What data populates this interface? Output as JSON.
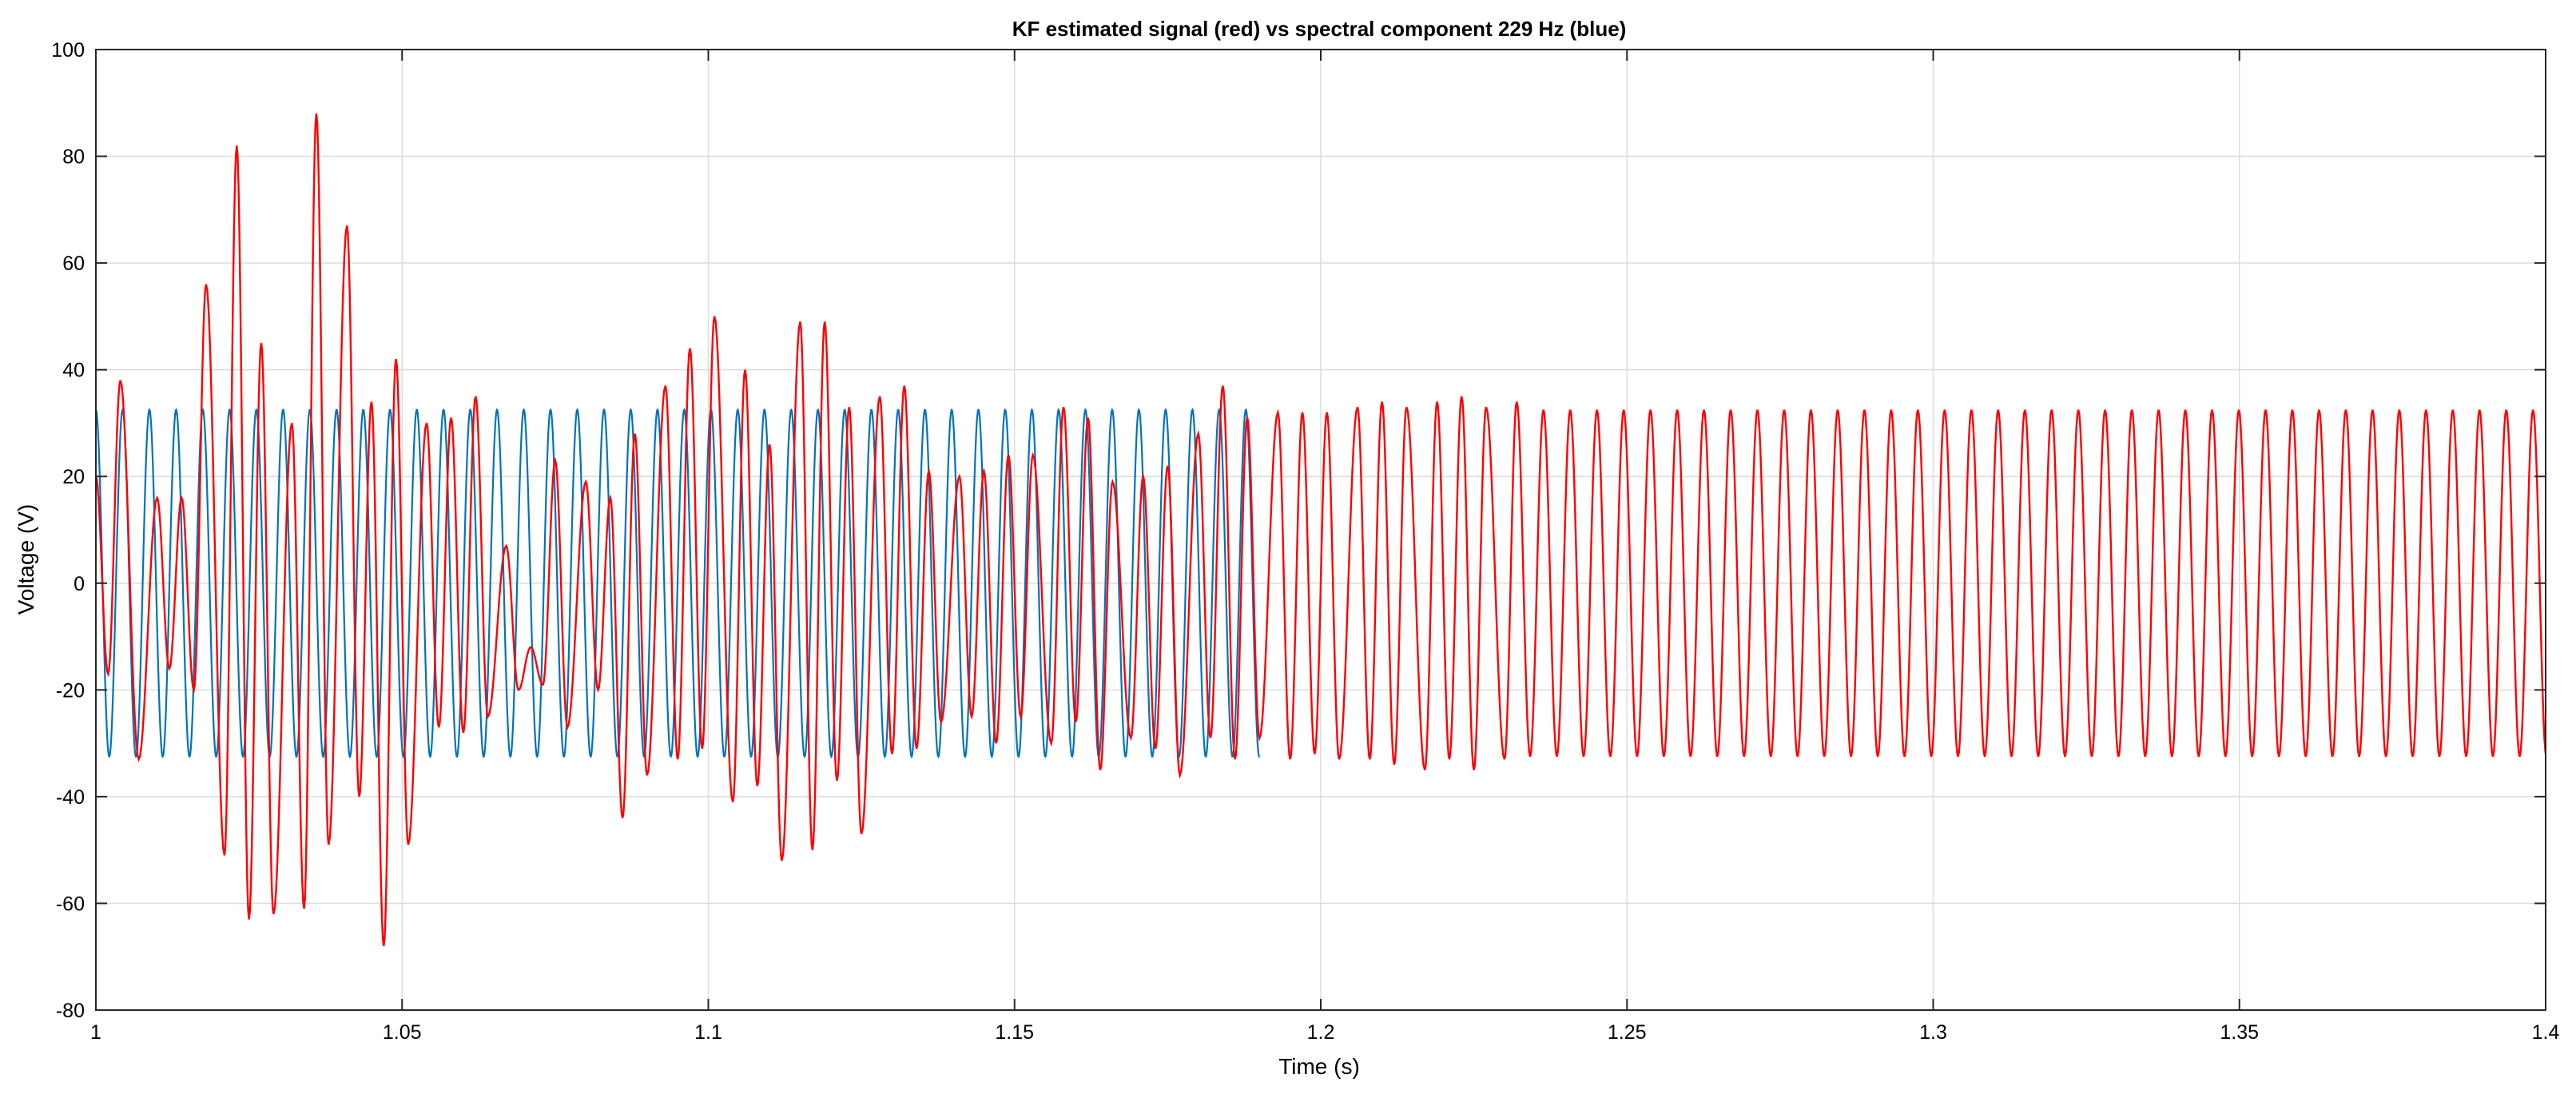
{
  "chart_data": {
    "type": "line",
    "title": "KF estimated signal (red) vs spectral component 229 Hz (blue)",
    "xlabel": "Time (s)",
    "ylabel": "Voltage (V)",
    "xlim": [
      1,
      1.4
    ],
    "ylim": [
      -80,
      100
    ],
    "xticks": [
      1,
      1.05,
      1.1,
      1.15,
      1.2,
      1.25,
      1.3,
      1.35,
      1.4
    ],
    "xtick_labels": [
      "1",
      "1.05",
      "1.1",
      "1.15",
      "1.2",
      "1.25",
      "1.3",
      "1.35",
      "1.4"
    ],
    "yticks": [
      -80,
      -60,
      -40,
      -20,
      0,
      20,
      40,
      60,
      80,
      100
    ],
    "ytick_labels": [
      "-80",
      "-60",
      "-40",
      "-20",
      "0",
      "20",
      "40",
      "60",
      "80",
      "100"
    ],
    "grid": true,
    "series": [
      {
        "color": "#0072BD",
        "frequency_hz": 229,
        "amplitude": 32.5,
        "x_range": [
          1,
          1.19
        ]
      },
      {
        "color": "#FF0000",
        "frequency_hz": 229,
        "x_range": [
          1,
          1.4
        ],
        "peaks": [
          [
            1.004,
            38
          ],
          [
            1.01,
            16
          ],
          [
            1.014,
            16
          ],
          [
            1.018,
            56
          ],
          [
            1.023,
            82
          ],
          [
            1.027,
            45
          ],
          [
            1.032,
            30
          ],
          [
            1.036,
            88
          ],
          [
            1.041,
            67
          ],
          [
            1.045,
            34
          ],
          [
            1.049,
            42
          ],
          [
            1.054,
            30
          ],
          [
            1.058,
            31
          ],
          [
            1.062,
            35
          ],
          [
            1.067,
            7
          ],
          [
            1.071,
            -12
          ],
          [
            1.075,
            23
          ],
          [
            1.08,
            19
          ],
          [
            1.084,
            16
          ],
          [
            1.088,
            28
          ],
          [
            1.093,
            37
          ],
          [
            1.097,
            44
          ],
          [
            1.101,
            50
          ],
          [
            1.106,
            40
          ],
          [
            1.11,
            26
          ],
          [
            1.115,
            49
          ],
          [
            1.119,
            49
          ],
          [
            1.123,
            33
          ],
          [
            1.128,
            35
          ],
          [
            1.132,
            37
          ],
          [
            1.136,
            21
          ],
          [
            1.141,
            20
          ],
          [
            1.145,
            21
          ],
          [
            1.149,
            24
          ],
          [
            1.153,
            24
          ],
          [
            1.158,
            33
          ],
          [
            1.162,
            31
          ],
          [
            1.166,
            19
          ],
          [
            1.171,
            20
          ],
          [
            1.175,
            22
          ],
          [
            1.18,
            28
          ],
          [
            1.184,
            37
          ],
          [
            1.188,
            31
          ],
          [
            1.193,
            32
          ],
          [
            1.197,
            32
          ],
          [
            1.201,
            32
          ],
          [
            1.206,
            33
          ],
          [
            1.21,
            34
          ],
          [
            1.214,
            33
          ],
          [
            1.219,
            34
          ],
          [
            1.223,
            35
          ],
          [
            1.227,
            33
          ],
          [
            1.232,
            34
          ]
        ],
        "troughs": [
          [
            1.002,
            -17
          ],
          [
            1.007,
            -33
          ],
          [
            1.012,
            -16
          ],
          [
            1.016,
            -20
          ],
          [
            1.021,
            -51
          ],
          [
            1.025,
            -63
          ],
          [
            1.029,
            -62
          ],
          [
            1.034,
            -61
          ],
          [
            1.038,
            -49
          ],
          [
            1.043,
            -40
          ],
          [
            1.047,
            -68
          ],
          [
            1.051,
            -49
          ],
          [
            1.056,
            -27
          ],
          [
            1.06,
            -28
          ],
          [
            1.064,
            -25
          ],
          [
            1.069,
            -20
          ],
          [
            1.073,
            -19
          ],
          [
            1.077,
            -27
          ],
          [
            1.082,
            -20
          ],
          [
            1.086,
            -44
          ],
          [
            1.09,
            -36
          ],
          [
            1.095,
            -33
          ],
          [
            1.099,
            -31
          ],
          [
            1.104,
            -41
          ],
          [
            1.108,
            -38
          ],
          [
            1.112,
            -52
          ],
          [
            1.117,
            -50
          ],
          [
            1.121,
            -37
          ],
          [
            1.125,
            -47
          ],
          [
            1.13,
            -32
          ],
          [
            1.134,
            -31
          ],
          [
            1.138,
            -26
          ],
          [
            1.143,
            -25
          ],
          [
            1.147,
            -30
          ],
          [
            1.151,
            -25
          ],
          [
            1.156,
            -30
          ],
          [
            1.16,
            -26
          ],
          [
            1.164,
            -35
          ],
          [
            1.169,
            -29
          ],
          [
            1.173,
            -31
          ],
          [
            1.177,
            -36
          ],
          [
            1.182,
            -29
          ],
          [
            1.186,
            -33
          ],
          [
            1.19,
            -29
          ],
          [
            1.195,
            -33
          ],
          [
            1.199,
            -32
          ],
          [
            1.203,
            -33
          ],
          [
            1.208,
            -33
          ],
          [
            1.212,
            -34
          ],
          [
            1.217,
            -35
          ],
          [
            1.221,
            -33
          ],
          [
            1.225,
            -35
          ],
          [
            1.23,
            -33
          ]
        ],
        "steady_amplitude": 32.5
      }
    ]
  }
}
